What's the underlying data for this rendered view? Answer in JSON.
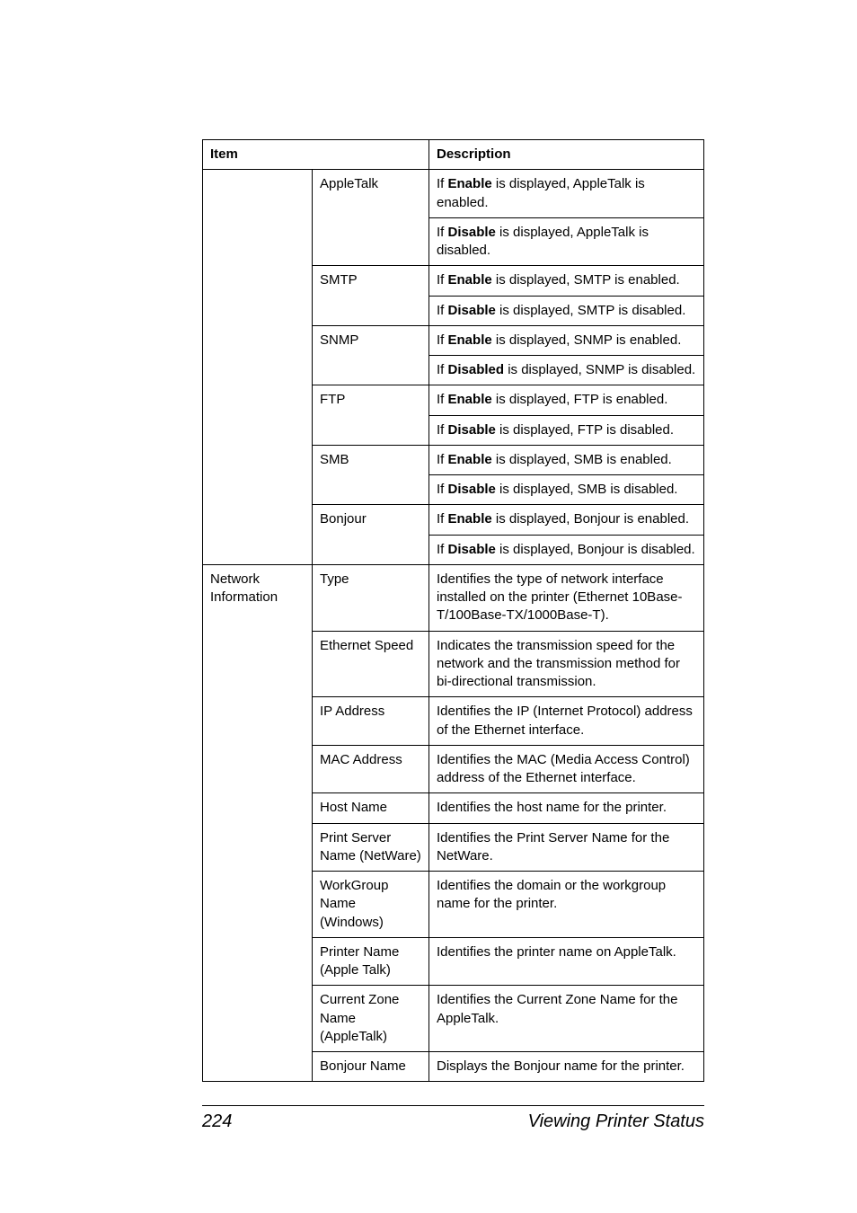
{
  "table": {
    "header": {
      "item": "Item",
      "desc": "Description"
    },
    "rows": [
      {
        "c1": {
          "text": "",
          "classes": "nb-top nb-bottom",
          "rowspan": 1
        },
        "c2": {
          "text": "AppleTalk",
          "rowspan": 2
        },
        "c3": {
          "segments": [
            {
              "t": "If "
            },
            {
              "t": "Enable",
              "b": true
            },
            {
              "t": " is displayed, AppleTalk is enabled."
            }
          ]
        }
      },
      {
        "c1": {
          "text": "",
          "classes": "nb-top nb-bottom"
        },
        "c3": {
          "segments": [
            {
              "t": "If "
            },
            {
              "t": "Disable",
              "b": true
            },
            {
              "t": " is displayed, AppleTalk is disabled."
            }
          ]
        }
      },
      {
        "c1": {
          "text": "",
          "classes": "nb-top nb-bottom"
        },
        "c2": {
          "text": "SMTP",
          "rowspan": 2
        },
        "c3": {
          "segments": [
            {
              "t": "If "
            },
            {
              "t": "Enable",
              "b": true
            },
            {
              "t": " is displayed, SMTP is enabled."
            }
          ]
        }
      },
      {
        "c1": {
          "text": "",
          "classes": "nb-top nb-bottom"
        },
        "c3": {
          "segments": [
            {
              "t": "If "
            },
            {
              "t": "Disable",
              "b": true
            },
            {
              "t": " is displayed, SMTP is disabled."
            }
          ]
        }
      },
      {
        "c1": {
          "text": "",
          "classes": "nb-top nb-bottom"
        },
        "c2": {
          "text": "SNMP",
          "rowspan": 2
        },
        "c3": {
          "segments": [
            {
              "t": "If "
            },
            {
              "t": "Enable",
              "b": true
            },
            {
              "t": " is displayed, SNMP is enabled."
            }
          ]
        }
      },
      {
        "c1": {
          "text": "",
          "classes": "nb-top nb-bottom"
        },
        "c3": {
          "segments": [
            {
              "t": "If "
            },
            {
              "t": "Disabled",
              "b": true
            },
            {
              "t": " is displayed, SNMP is disabled."
            }
          ]
        }
      },
      {
        "c1": {
          "text": "",
          "classes": "nb-top nb-bottom"
        },
        "c2": {
          "text": "FTP",
          "rowspan": 2
        },
        "c3": {
          "segments": [
            {
              "t": "If "
            },
            {
              "t": "Enable",
              "b": true
            },
            {
              "t": " is displayed, FTP is enabled."
            }
          ]
        }
      },
      {
        "c1": {
          "text": "",
          "classes": "nb-top nb-bottom"
        },
        "c3": {
          "segments": [
            {
              "t": "If "
            },
            {
              "t": "Disable",
              "b": true
            },
            {
              "t": " is displayed, FTP is disabled."
            }
          ]
        }
      },
      {
        "c1": {
          "text": "",
          "classes": "nb-top nb-bottom"
        },
        "c2": {
          "text": "SMB",
          "rowspan": 2
        },
        "c3": {
          "segments": [
            {
              "t": "If "
            },
            {
              "t": "Enable",
              "b": true
            },
            {
              "t": " is displayed, SMB is enabled."
            }
          ]
        }
      },
      {
        "c1": {
          "text": "",
          "classes": "nb-top nb-bottom"
        },
        "c3": {
          "segments": [
            {
              "t": "If "
            },
            {
              "t": "Disable",
              "b": true
            },
            {
              "t": " is displayed, SMB is disabled."
            }
          ]
        }
      },
      {
        "c1": {
          "text": "",
          "classes": "nb-top nb-bottom"
        },
        "c2": {
          "text": "Bonjour",
          "rowspan": 2
        },
        "c3": {
          "segments": [
            {
              "t": "If "
            },
            {
              "t": "Enable",
              "b": true
            },
            {
              "t": " is displayed, Bonjour is enabled."
            }
          ]
        }
      },
      {
        "c1": {
          "text": "",
          "classes": "nb-top"
        },
        "c3": {
          "segments": [
            {
              "t": "If "
            },
            {
              "t": "Disable",
              "b": true
            },
            {
              "t": " is displayed, Bonjour is disabled."
            }
          ]
        }
      },
      {
        "c1": {
          "text": "Network Information",
          "rowspan": 10
        },
        "c2": {
          "text": "Type"
        },
        "c3": {
          "segments": [
            {
              "t": "Identifies the type of network interface installed on the printer (Ethernet 10Base-T/100Base-TX/1000Base-T)."
            }
          ]
        }
      },
      {
        "c2": {
          "text": "Ethernet Speed"
        },
        "c3": {
          "segments": [
            {
              "t": "Indicates the transmission speed for the network and the transmission method for bi-directional transmission."
            }
          ]
        }
      },
      {
        "c2": {
          "text": "IP Address"
        },
        "c3": {
          "segments": [
            {
              "t": "Identifies the IP (Internet Protocol) address of the Ethernet interface."
            }
          ]
        }
      },
      {
        "c2": {
          "text": "MAC Address"
        },
        "c3": {
          "segments": [
            {
              "t": "Identifies the MAC (Media Access Control) address of the Ethernet interface."
            }
          ]
        }
      },
      {
        "c2": {
          "text": "Host Name"
        },
        "c3": {
          "segments": [
            {
              "t": "Identifies the host name for the printer."
            }
          ]
        }
      },
      {
        "c2": {
          "text": "Print Server Name (NetWare)"
        },
        "c3": {
          "segments": [
            {
              "t": "Identifies the Print Server Name for the NetWare."
            }
          ]
        }
      },
      {
        "c2": {
          "text": "WorkGroup Name (Windows)"
        },
        "c3": {
          "segments": [
            {
              "t": "Identifies the domain or the workgroup name for the printer."
            }
          ]
        }
      },
      {
        "c2": {
          "text": "Printer Name (Apple Talk)"
        },
        "c3": {
          "segments": [
            {
              "t": "Identifies the printer name on AppleTalk."
            }
          ]
        }
      },
      {
        "c2": {
          "text": "Current Zone Name (AppleTalk)"
        },
        "c3": {
          "segments": [
            {
              "t": "Identifies the Current Zone Name for the AppleTalk."
            }
          ]
        }
      },
      {
        "c2": {
          "text": "Bonjour Name"
        },
        "c3": {
          "segments": [
            {
              "t": "Displays the Bonjour name for the printer."
            }
          ]
        }
      }
    ]
  },
  "footer": {
    "page_number": "224",
    "title": "Viewing Printer Status"
  }
}
